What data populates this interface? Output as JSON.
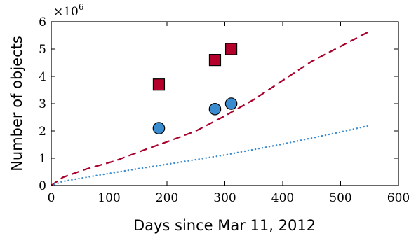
{
  "chart_data": {
    "type": "scatter",
    "xlabel": "Days since Mar 11, 2012",
    "ylabel": "Number of objects",
    "y_multiplier": {
      "base": "×10",
      "exponent": "6"
    },
    "xlim": [
      0,
      600
    ],
    "ylim": [
      0,
      6
    ],
    "xticks": [
      0,
      100,
      200,
      300,
      400,
      500,
      600
    ],
    "yticks": [
      0,
      1,
      2,
      3,
      4,
      5,
      6
    ],
    "grid": false,
    "series": [
      {
        "kind": "markers",
        "marker": "square",
        "color": "#b5002b",
        "x": [
          186,
          283,
          311
        ],
        "y": [
          3.7,
          4.6,
          5.0
        ]
      },
      {
        "kind": "markers",
        "marker": "circle",
        "color": "#3a8ccf",
        "x": [
          186,
          283,
          311
        ],
        "y": [
          2.1,
          2.8,
          3.0
        ]
      },
      {
        "kind": "line",
        "style": "dashed",
        "color": "#a8002b",
        "x": [
          0,
          20,
          60,
          110,
          160,
          200,
          250,
          300,
          350,
          400,
          450,
          500,
          550
        ],
        "y": [
          0,
          0.3,
          0.6,
          0.9,
          1.3,
          1.6,
          2.0,
          2.55,
          3.15,
          3.85,
          4.55,
          5.1,
          5.65
        ]
      },
      {
        "kind": "line",
        "style": "dotted",
        "color": "#3a8ccf",
        "x": [
          0,
          20,
          60,
          110,
          160,
          200,
          250,
          300,
          350,
          400,
          450,
          500,
          550
        ],
        "y": [
          0,
          0.15,
          0.3,
          0.48,
          0.65,
          0.78,
          0.95,
          1.12,
          1.32,
          1.52,
          1.74,
          1.96,
          2.2
        ]
      }
    ]
  }
}
